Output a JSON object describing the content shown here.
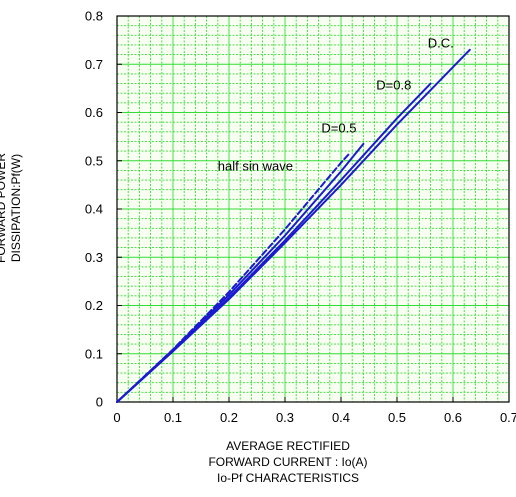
{
  "ylabel_lines": [
    "FORWARD POWER",
    "DISSIPATION:Pf(W)"
  ],
  "xlabel_lines": [
    "AVERAGE RECTIFIED",
    "FORWARD CURRENT : Io(A)"
  ],
  "caption": "Io-Pf CHARACTERISTICS",
  "colors": {
    "grid_minor": "#33dd33",
    "plot_bg": "#f8fff2",
    "series": "#1a1ad0",
    "axis": "#000000"
  },
  "chart_data": {
    "type": "line",
    "title": "",
    "xlabel": "AVERAGE RECTIFIED FORWARD CURRENT : Io(A)",
    "ylabel": "FORWARD POWER DISSIPATION:Pf(W)",
    "xlim": [
      0,
      0.7
    ],
    "ylim": [
      0,
      0.8
    ],
    "x_ticks": [
      "0",
      "0.1",
      "0.2",
      "0.3",
      "0.4",
      "0.5",
      "0.6",
      "0.7"
    ],
    "y_ticks": [
      "0",
      "0.1",
      "0.2",
      "0.3",
      "0.4",
      "0.5",
      "0.6",
      "0.7",
      "0.8"
    ],
    "grid": true,
    "series": [
      {
        "name": "D.C.",
        "style": "solid",
        "x": [
          0,
          0.1,
          0.2,
          0.3,
          0.4,
          0.5,
          0.63
        ],
        "y": [
          0,
          0.105,
          0.213,
          0.33,
          0.45,
          0.575,
          0.73
        ]
      },
      {
        "name": "D=0.8",
        "style": "solid",
        "x": [
          0,
          0.1,
          0.2,
          0.3,
          0.4,
          0.5,
          0.56
        ],
        "y": [
          0,
          0.106,
          0.216,
          0.335,
          0.46,
          0.588,
          0.66
        ]
      },
      {
        "name": "D=0.5",
        "style": "solid",
        "x": [
          0,
          0.1,
          0.2,
          0.3,
          0.4,
          0.44
        ],
        "y": [
          0,
          0.108,
          0.222,
          0.345,
          0.478,
          0.535
        ]
      },
      {
        "name": "half sin wave",
        "style": "dashed",
        "x": [
          0,
          0.1,
          0.2,
          0.3,
          0.4,
          0.415
        ],
        "y": [
          0,
          0.109,
          0.228,
          0.358,
          0.496,
          0.515
        ]
      }
    ],
    "annotations": [
      {
        "text": "D.C.",
        "x": 0.555,
        "y": 0.735
      },
      {
        "text": "D=0.8",
        "x": 0.463,
        "y": 0.648
      },
      {
        "text": "D=0.5",
        "x": 0.365,
        "y": 0.559
      },
      {
        "text": "half sin wave",
        "x": 0.18,
        "y": 0.48
      }
    ]
  }
}
